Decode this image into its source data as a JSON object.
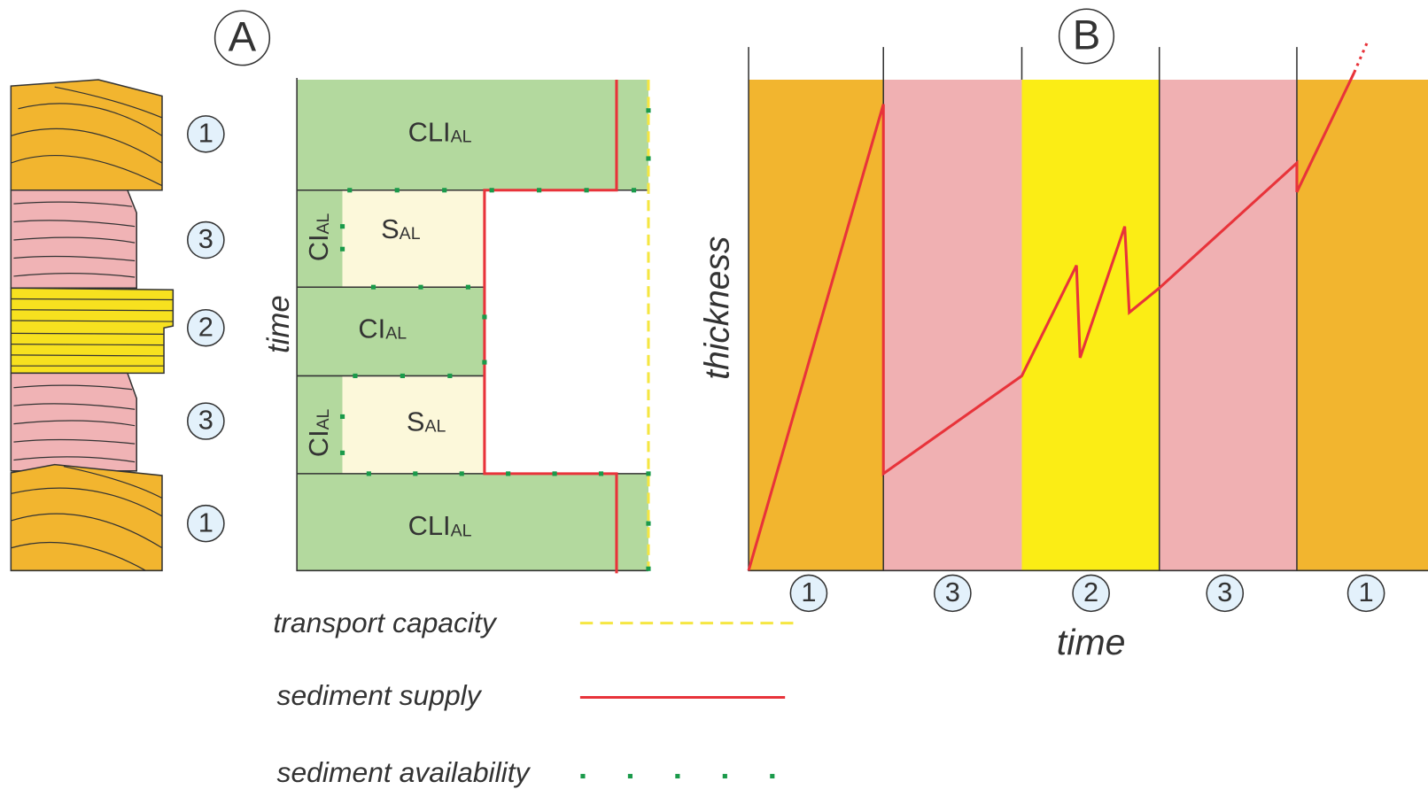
{
  "panel_labels": [
    "A",
    "B"
  ],
  "column": {
    "facies": [
      "1",
      "3",
      "2",
      "3",
      "1"
    ]
  },
  "diagram_a": {
    "axis_label": "time",
    "boxes": [
      {
        "main": "CLI",
        "sub": "AL"
      },
      {
        "main": "CI",
        "sub": "AL"
      },
      {
        "main": "S",
        "sub": "AL"
      },
      {
        "main": "CI",
        "sub": "AL"
      },
      {
        "main": "CI",
        "sub": "AL"
      },
      {
        "main": "S",
        "sub": "AL"
      },
      {
        "main": "CLI",
        "sub": "AL"
      }
    ]
  },
  "diagram_b": {
    "y_axis_label": "thickness",
    "x_axis_label": "time",
    "facies": [
      "1",
      "3",
      "2",
      "3",
      "1"
    ]
  },
  "legend": [
    "transport capacity",
    "sediment supply",
    "sediment availability"
  ]
}
